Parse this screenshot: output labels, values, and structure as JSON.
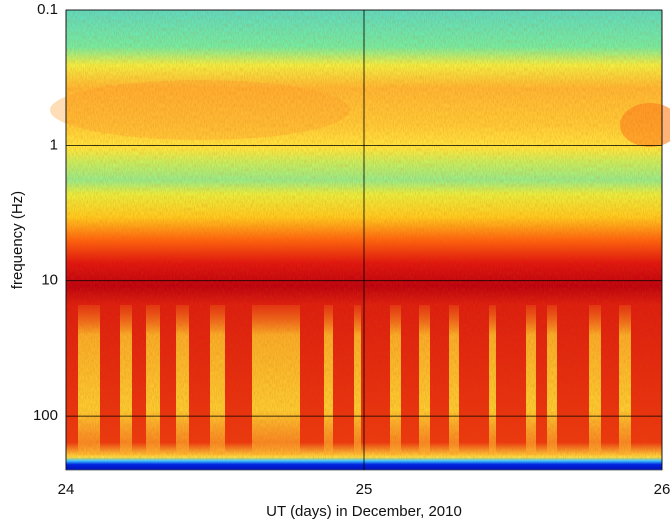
{
  "chart_data": {
    "type": "spectrogram",
    "x_label": "UT (days) in December, 2010",
    "y_label": "frequency (Hz)",
    "xlim": [
      24,
      26
    ],
    "xticks": [
      24,
      25,
      26
    ],
    "ylim": [
      0.1,
      250
    ],
    "yticks": [
      0.1,
      1,
      10,
      100
    ],
    "y_scale": "log",
    "y_inverted": true,
    "grid": true,
    "grid_color": "#000000"
  }
}
